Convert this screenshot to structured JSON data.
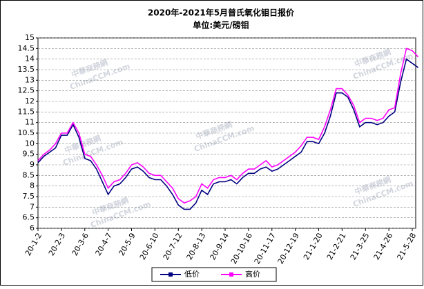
{
  "chart_data": {
    "type": "line",
    "title": "2020年-2021年5月普氏氧化钼日报价",
    "subtitle": "单位:美元/磅钼",
    "watermark": [
      "中華商務網",
      "ChinaCCM.com"
    ],
    "categories": [
      "20-1-2",
      null,
      null,
      null,
      "20-2-3",
      null,
      null,
      null,
      "20-3-6",
      null,
      null,
      null,
      "20-4-7",
      null,
      null,
      null,
      "20-5-9",
      null,
      null,
      null,
      "20-6-10",
      null,
      null,
      null,
      "20-7-12",
      null,
      null,
      null,
      "20-8-13",
      null,
      null,
      null,
      "20-9-14",
      null,
      null,
      null,
      "20-10-16",
      null,
      null,
      null,
      "20-11-17",
      null,
      null,
      null,
      "20-12-19",
      null,
      null,
      null,
      "21-1-20",
      null,
      null,
      null,
      "21-2-21",
      null,
      null,
      null,
      "21-3-25",
      null,
      null,
      null,
      "21-4-26",
      null,
      null,
      null,
      "21-5-28",
      null
    ],
    "series": [
      {
        "name": "低价",
        "color": "#000080",
        "values": [
          9.1,
          9.4,
          9.6,
          9.8,
          10.4,
          10.4,
          10.9,
          10.3,
          9.3,
          9.2,
          8.8,
          8.2,
          7.6,
          8.0,
          8.1,
          8.4,
          8.8,
          8.9,
          8.7,
          8.4,
          8.3,
          8.3,
          8.0,
          7.6,
          7.1,
          6.9,
          6.9,
          7.2,
          7.8,
          7.6,
          8.1,
          8.2,
          8.2,
          8.3,
          8.1,
          8.4,
          8.6,
          8.6,
          8.8,
          8.9,
          8.7,
          8.8,
          9.0,
          9.2,
          9.4,
          9.6,
          10.1,
          10.1,
          10.0,
          10.5,
          11.3,
          12.4,
          12.4,
          12.2,
          11.6,
          10.8,
          11.0,
          11.0,
          10.9,
          11.0,
          11.3,
          11.5,
          12.9,
          14.0,
          13.8,
          13.6
        ]
      },
      {
        "name": "高价",
        "color": "#ff00ff",
        "values": [
          9.2,
          9.5,
          9.7,
          10.0,
          10.5,
          10.5,
          11.0,
          10.5,
          9.5,
          9.4,
          9.0,
          8.5,
          7.9,
          8.2,
          8.3,
          8.6,
          9.0,
          9.1,
          8.9,
          8.6,
          8.5,
          8.5,
          8.2,
          7.9,
          7.4,
          7.2,
          7.3,
          7.5,
          8.1,
          7.9,
          8.3,
          8.4,
          8.4,
          8.5,
          8.3,
          8.6,
          8.8,
          8.8,
          9.0,
          9.2,
          8.9,
          9.0,
          9.2,
          9.4,
          9.6,
          9.9,
          10.3,
          10.3,
          10.2,
          10.8,
          11.6,
          12.6,
          12.6,
          12.3,
          11.8,
          11.0,
          11.2,
          11.2,
          11.1,
          11.2,
          11.6,
          11.7,
          13.3,
          14.5,
          14.4,
          14.1
        ]
      }
    ],
    "ylim": [
      6,
      15
    ],
    "yticks": [
      6,
      6.5,
      7,
      7.5,
      8,
      8.5,
      9,
      9.5,
      10,
      10.5,
      11,
      11.5,
      12,
      12.5,
      13,
      13.5,
      14,
      14.5,
      15
    ],
    "grid": true
  }
}
